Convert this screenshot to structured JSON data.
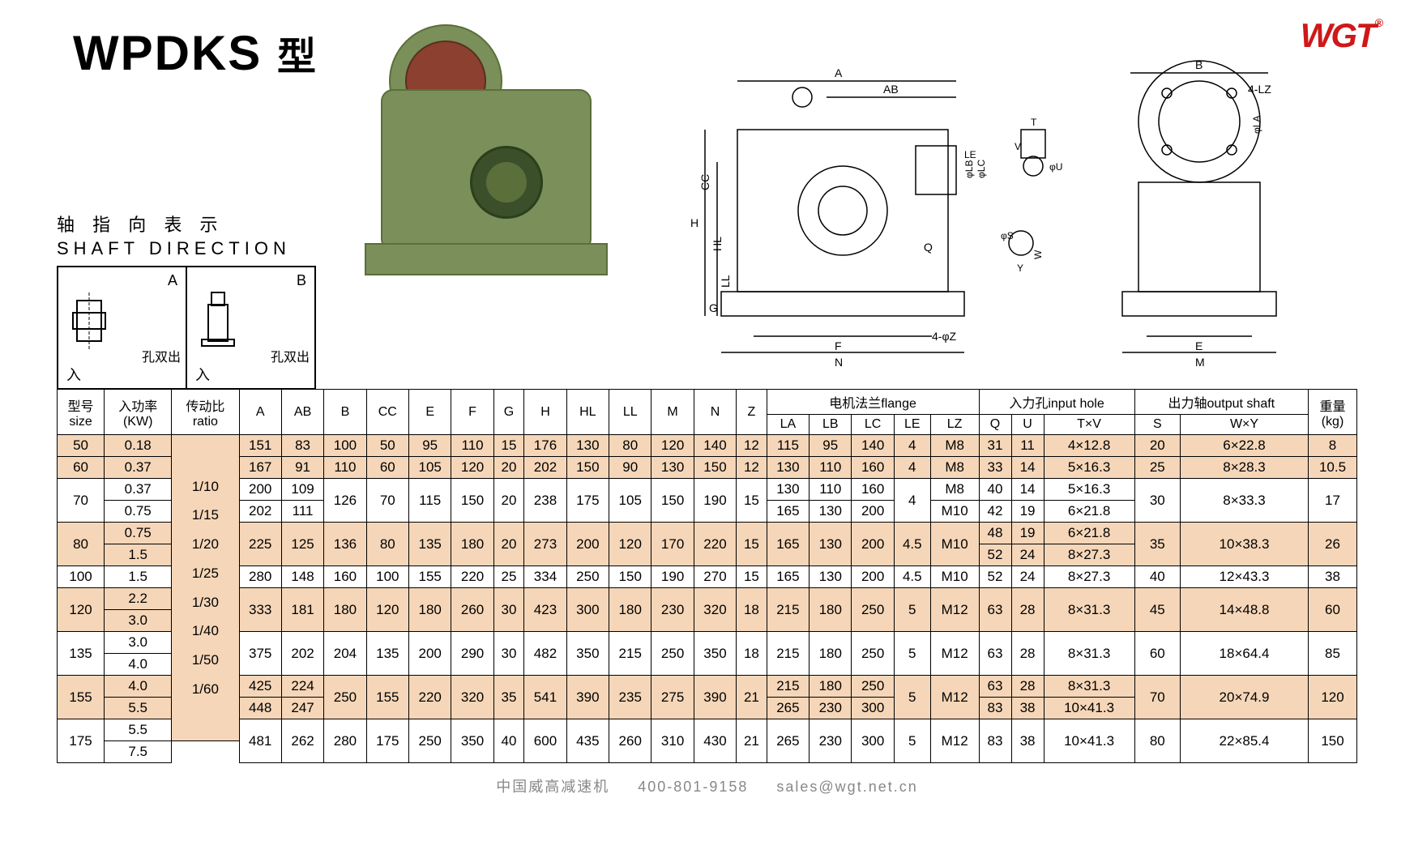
{
  "logo": "WGT",
  "title": {
    "model": "WPDKS",
    "suffix": "型"
  },
  "shaft": {
    "label_cn": "轴 指 向 表 示",
    "label_en": "SHAFT DIRECTION",
    "boxes": [
      {
        "letter": "A",
        "cn": "孔双出",
        "arrow": "入"
      },
      {
        "letter": "B",
        "cn": "孔双出",
        "arrow": "入"
      }
    ]
  },
  "diagram_labels": {
    "A": "A",
    "AB": "AB",
    "B": "B",
    "H": "H",
    "HL": "HL",
    "LL": "LL",
    "CC": "CC",
    "G": "G",
    "F": "F",
    "N": "N",
    "Z": "4-φZ",
    "LE": "LE",
    "LB": "φLB",
    "LC": "φLC",
    "LA": "φLA",
    "LZ": "4-LZ",
    "T": "T",
    "V": "V",
    "U": "φU",
    "S": "φS",
    "Y": "Y",
    "W": "W",
    "Q": "Q",
    "E": "E",
    "M": "M"
  },
  "table": {
    "headers": {
      "size": "型号\nsize",
      "kw": "入功率\n(KW)",
      "ratio": "传动比\nratio",
      "A": "A",
      "AB": "AB",
      "B": "B",
      "CC": "CC",
      "E": "E",
      "F": "F",
      "G": "G",
      "H": "H",
      "HL": "HL",
      "LL": "LL",
      "M": "M",
      "N": "N",
      "Z": "Z",
      "flange": "电机法兰flange",
      "LA": "LA",
      "LB": "LB",
      "LC": "LC",
      "LE": "LE",
      "LZ": "LZ",
      "input": "入力孔input hole",
      "Q": "Q",
      "U": "U",
      "TV": "T×V",
      "output": "出力轴output shaft",
      "S": "S",
      "WY": "W×Y",
      "kg": "重量\n(kg)"
    },
    "ratio_text": "1/10\n1/15\n1/20\n1/25\n1/30\n1/40\n1/50\n1/60",
    "rows": [
      {
        "size": "50",
        "kw": "0.18",
        "A": "151",
        "AB": "83",
        "B": "100",
        "CC": "50",
        "E": "95",
        "F": "110",
        "G": "15",
        "H": "176",
        "HL": "130",
        "LL": "80",
        "M": "120",
        "N": "140",
        "Z": "12",
        "LA": "115",
        "LB": "95",
        "LC": "140",
        "LE": "4",
        "LZ": "M8",
        "Q": "31",
        "U": "11",
        "TV": "4×12.8",
        "S": "20",
        "WY": "6×22.8",
        "kg": "8",
        "alt": true
      },
      {
        "size": "60",
        "kw": "0.37",
        "A": "167",
        "AB": "91",
        "B": "110",
        "CC": "60",
        "E": "105",
        "F": "120",
        "G": "20",
        "H": "202",
        "HL": "150",
        "LL": "90",
        "M": "130",
        "N": "150",
        "Z": "12",
        "LA": "130",
        "LB": "110",
        "LC": "160",
        "LE": "4",
        "LZ": "M8",
        "Q": "33",
        "U": "14",
        "TV": "5×16.3",
        "S": "25",
        "WY": "8×28.3",
        "kg": "10.5",
        "alt": true
      },
      {
        "size": "70",
        "kw": [
          "0.37",
          "0.75"
        ],
        "A": [
          "200",
          "202"
        ],
        "AB": [
          "109",
          "111"
        ],
        "B": "126",
        "CC": "70",
        "E": "115",
        "F": "150",
        "G": "20",
        "H": "238",
        "HL": "175",
        "LL": "105",
        "M": "150",
        "N": "190",
        "Z": "15",
        "LA": [
          "130",
          "165"
        ],
        "LB": [
          "110",
          "130"
        ],
        "LC": [
          "160",
          "200"
        ],
        "LE": "4",
        "LZ": [
          "M8",
          "M10"
        ],
        "Q": [
          "40",
          "42"
        ],
        "U": [
          "14",
          "19"
        ],
        "TV": [
          "5×16.3",
          "6×21.8"
        ],
        "S": "30",
        "WY": "8×33.3",
        "kg": "17",
        "alt": false
      },
      {
        "size": "80",
        "kw": [
          "0.75",
          "1.5"
        ],
        "A": "225",
        "AB": "125",
        "B": "136",
        "CC": "80",
        "E": "135",
        "F": "180",
        "G": "20",
        "H": "273",
        "HL": "200",
        "LL": "120",
        "M": "170",
        "N": "220",
        "Z": "15",
        "LA": "165",
        "LB": "130",
        "LC": "200",
        "LE": "4.5",
        "LZ": "M10",
        "Q": [
          "48",
          "52"
        ],
        "U": [
          "19",
          "24"
        ],
        "TV": [
          "6×21.8",
          "8×27.3"
        ],
        "S": "35",
        "WY": "10×38.3",
        "kg": "26",
        "alt": true
      },
      {
        "size": "100",
        "kw": "1.5",
        "A": "280",
        "AB": "148",
        "B": "160",
        "CC": "100",
        "E": "155",
        "F": "220",
        "G": "25",
        "H": "334",
        "HL": "250",
        "LL": "150",
        "M": "190",
        "N": "270",
        "Z": "15",
        "LA": "165",
        "LB": "130",
        "LC": "200",
        "LE": "4.5",
        "LZ": "M10",
        "Q": "52",
        "U": "24",
        "TV": "8×27.3",
        "S": "40",
        "WY": "12×43.3",
        "kg": "38",
        "alt": false
      },
      {
        "size": "120",
        "kw": [
          "2.2",
          "3.0"
        ],
        "A": "333",
        "AB": "181",
        "B": "180",
        "CC": "120",
        "E": "180",
        "F": "260",
        "G": "30",
        "H": "423",
        "HL": "300",
        "LL": "180",
        "M": "230",
        "N": "320",
        "Z": "18",
        "LA": "215",
        "LB": "180",
        "LC": "250",
        "LE": "5",
        "LZ": "M12",
        "Q": "63",
        "U": "28",
        "TV": "8×31.3",
        "S": "45",
        "WY": "14×48.8",
        "kg": "60",
        "alt": true
      },
      {
        "size": "135",
        "kw": [
          "3.0",
          "4.0"
        ],
        "A": "375",
        "AB": "202",
        "B": "204",
        "CC": "135",
        "E": "200",
        "F": "290",
        "G": "30",
        "H": "482",
        "HL": "350",
        "LL": "215",
        "M": "250",
        "N": "350",
        "Z": "18",
        "LA": "215",
        "LB": "180",
        "LC": "250",
        "LE": "5",
        "LZ": "M12",
        "Q": "63",
        "U": "28",
        "TV": "8×31.3",
        "S": "60",
        "WY": "18×64.4",
        "kg": "85",
        "alt": false
      },
      {
        "size": "155",
        "kw": [
          "4.0",
          "5.5"
        ],
        "A": [
          "425",
          "448"
        ],
        "AB": [
          "224",
          "247"
        ],
        "B": "250",
        "CC": "155",
        "E": "220",
        "F": "320",
        "G": "35",
        "H": "541",
        "HL": "390",
        "LL": "235",
        "M": "275",
        "N": "390",
        "Z": "21",
        "LA": [
          "215",
          "265"
        ],
        "LB": [
          "180",
          "230"
        ],
        "LC": [
          "250",
          "300"
        ],
        "LE": "5",
        "LZ": "M12",
        "Q": [
          "63",
          "83"
        ],
        "U": [
          "28",
          "38"
        ],
        "TV": [
          "8×31.3",
          "10×41.3"
        ],
        "S": "70",
        "WY": "20×74.9",
        "kg": "120",
        "alt": true
      },
      {
        "size": "175",
        "kw": [
          "5.5",
          "7.5"
        ],
        "A": "481",
        "AB": "262",
        "B": "280",
        "CC": "175",
        "E": "250",
        "F": "350",
        "G": "40",
        "H": "600",
        "HL": "435",
        "LL": "260",
        "M": "310",
        "N": "430",
        "Z": "21",
        "LA": "265",
        "LB": "230",
        "LC": "300",
        "LE": "5",
        "LZ": "M12",
        "Q": "83",
        "U": "38",
        "TV": "10×41.3",
        "S": "80",
        "WY": "22×85.4",
        "kg": "150",
        "alt": false
      }
    ]
  },
  "footer": {
    "company": "中国威高减速机",
    "phone": "400-801-9158",
    "email": "sales@wgt.net.cn"
  },
  "colors": {
    "alt_row": "#f5d6b8",
    "gearbox_body": "#7a8f5a",
    "gearbox_flange": "#8b4030",
    "logo": "#d01818"
  }
}
